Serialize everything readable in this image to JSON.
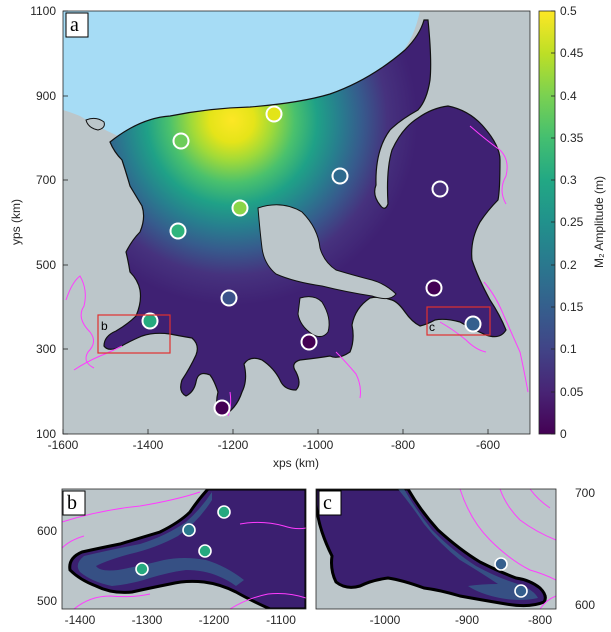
{
  "main": {
    "panel_tag": "a",
    "xlabel": "xps (km)",
    "ylabel": "yps (km)",
    "xlim": [
      -1600,
      -500
    ],
    "ylim": [
      100,
      1100
    ],
    "x_ticks": [
      "-1600",
      "-1400",
      "-1200",
      "-1000",
      "-800",
      "-600"
    ],
    "y_ticks": [
      "100",
      "300",
      "500",
      "700",
      "900",
      "1100"
    ],
    "inset_tags": {
      "b": "b",
      "c": "c"
    }
  },
  "colorbar": {
    "label": "M₂ Amplitude (m)",
    "ticks": [
      "0",
      "0.05",
      "0.1",
      "0.15",
      "0.2",
      "0.25",
      "0.3",
      "0.35",
      "0.4",
      "0.45",
      "0.5"
    ]
  },
  "panel_b": {
    "panel_tag": "b",
    "x_ticks": [
      "-1400",
      "-1300",
      "-1200",
      "-1100"
    ],
    "y_ticks": [
      "500",
      "600"
    ]
  },
  "panel_c": {
    "panel_tag": "c",
    "x_ticks": [
      "-1000",
      "-900",
      "-800"
    ],
    "y_ticks": [
      "600",
      "700"
    ]
  },
  "colors": {
    "land": "#bcc6ca",
    "ocean": "#a6dcf5",
    "coastline": "#ff3cff",
    "inset_box": "#e03030"
  }
}
